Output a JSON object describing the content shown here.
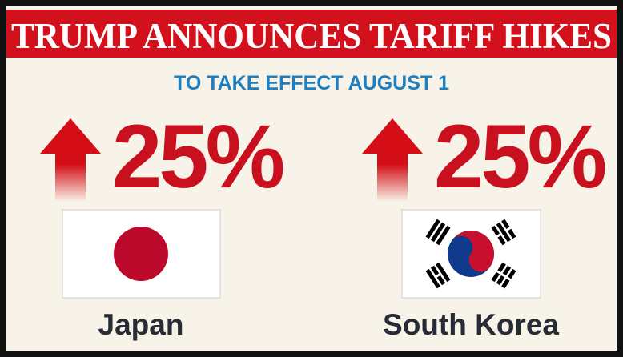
{
  "header": {
    "title": "TRUMP ANNOUNCES TARIFF HIKES",
    "subtitle": "TO TAKE EFFECT AUGUST 1"
  },
  "countries": [
    {
      "tariff": "25%",
      "name": "Japan"
    },
    {
      "tariff": "25%",
      "name": "South Korea"
    }
  ]
}
